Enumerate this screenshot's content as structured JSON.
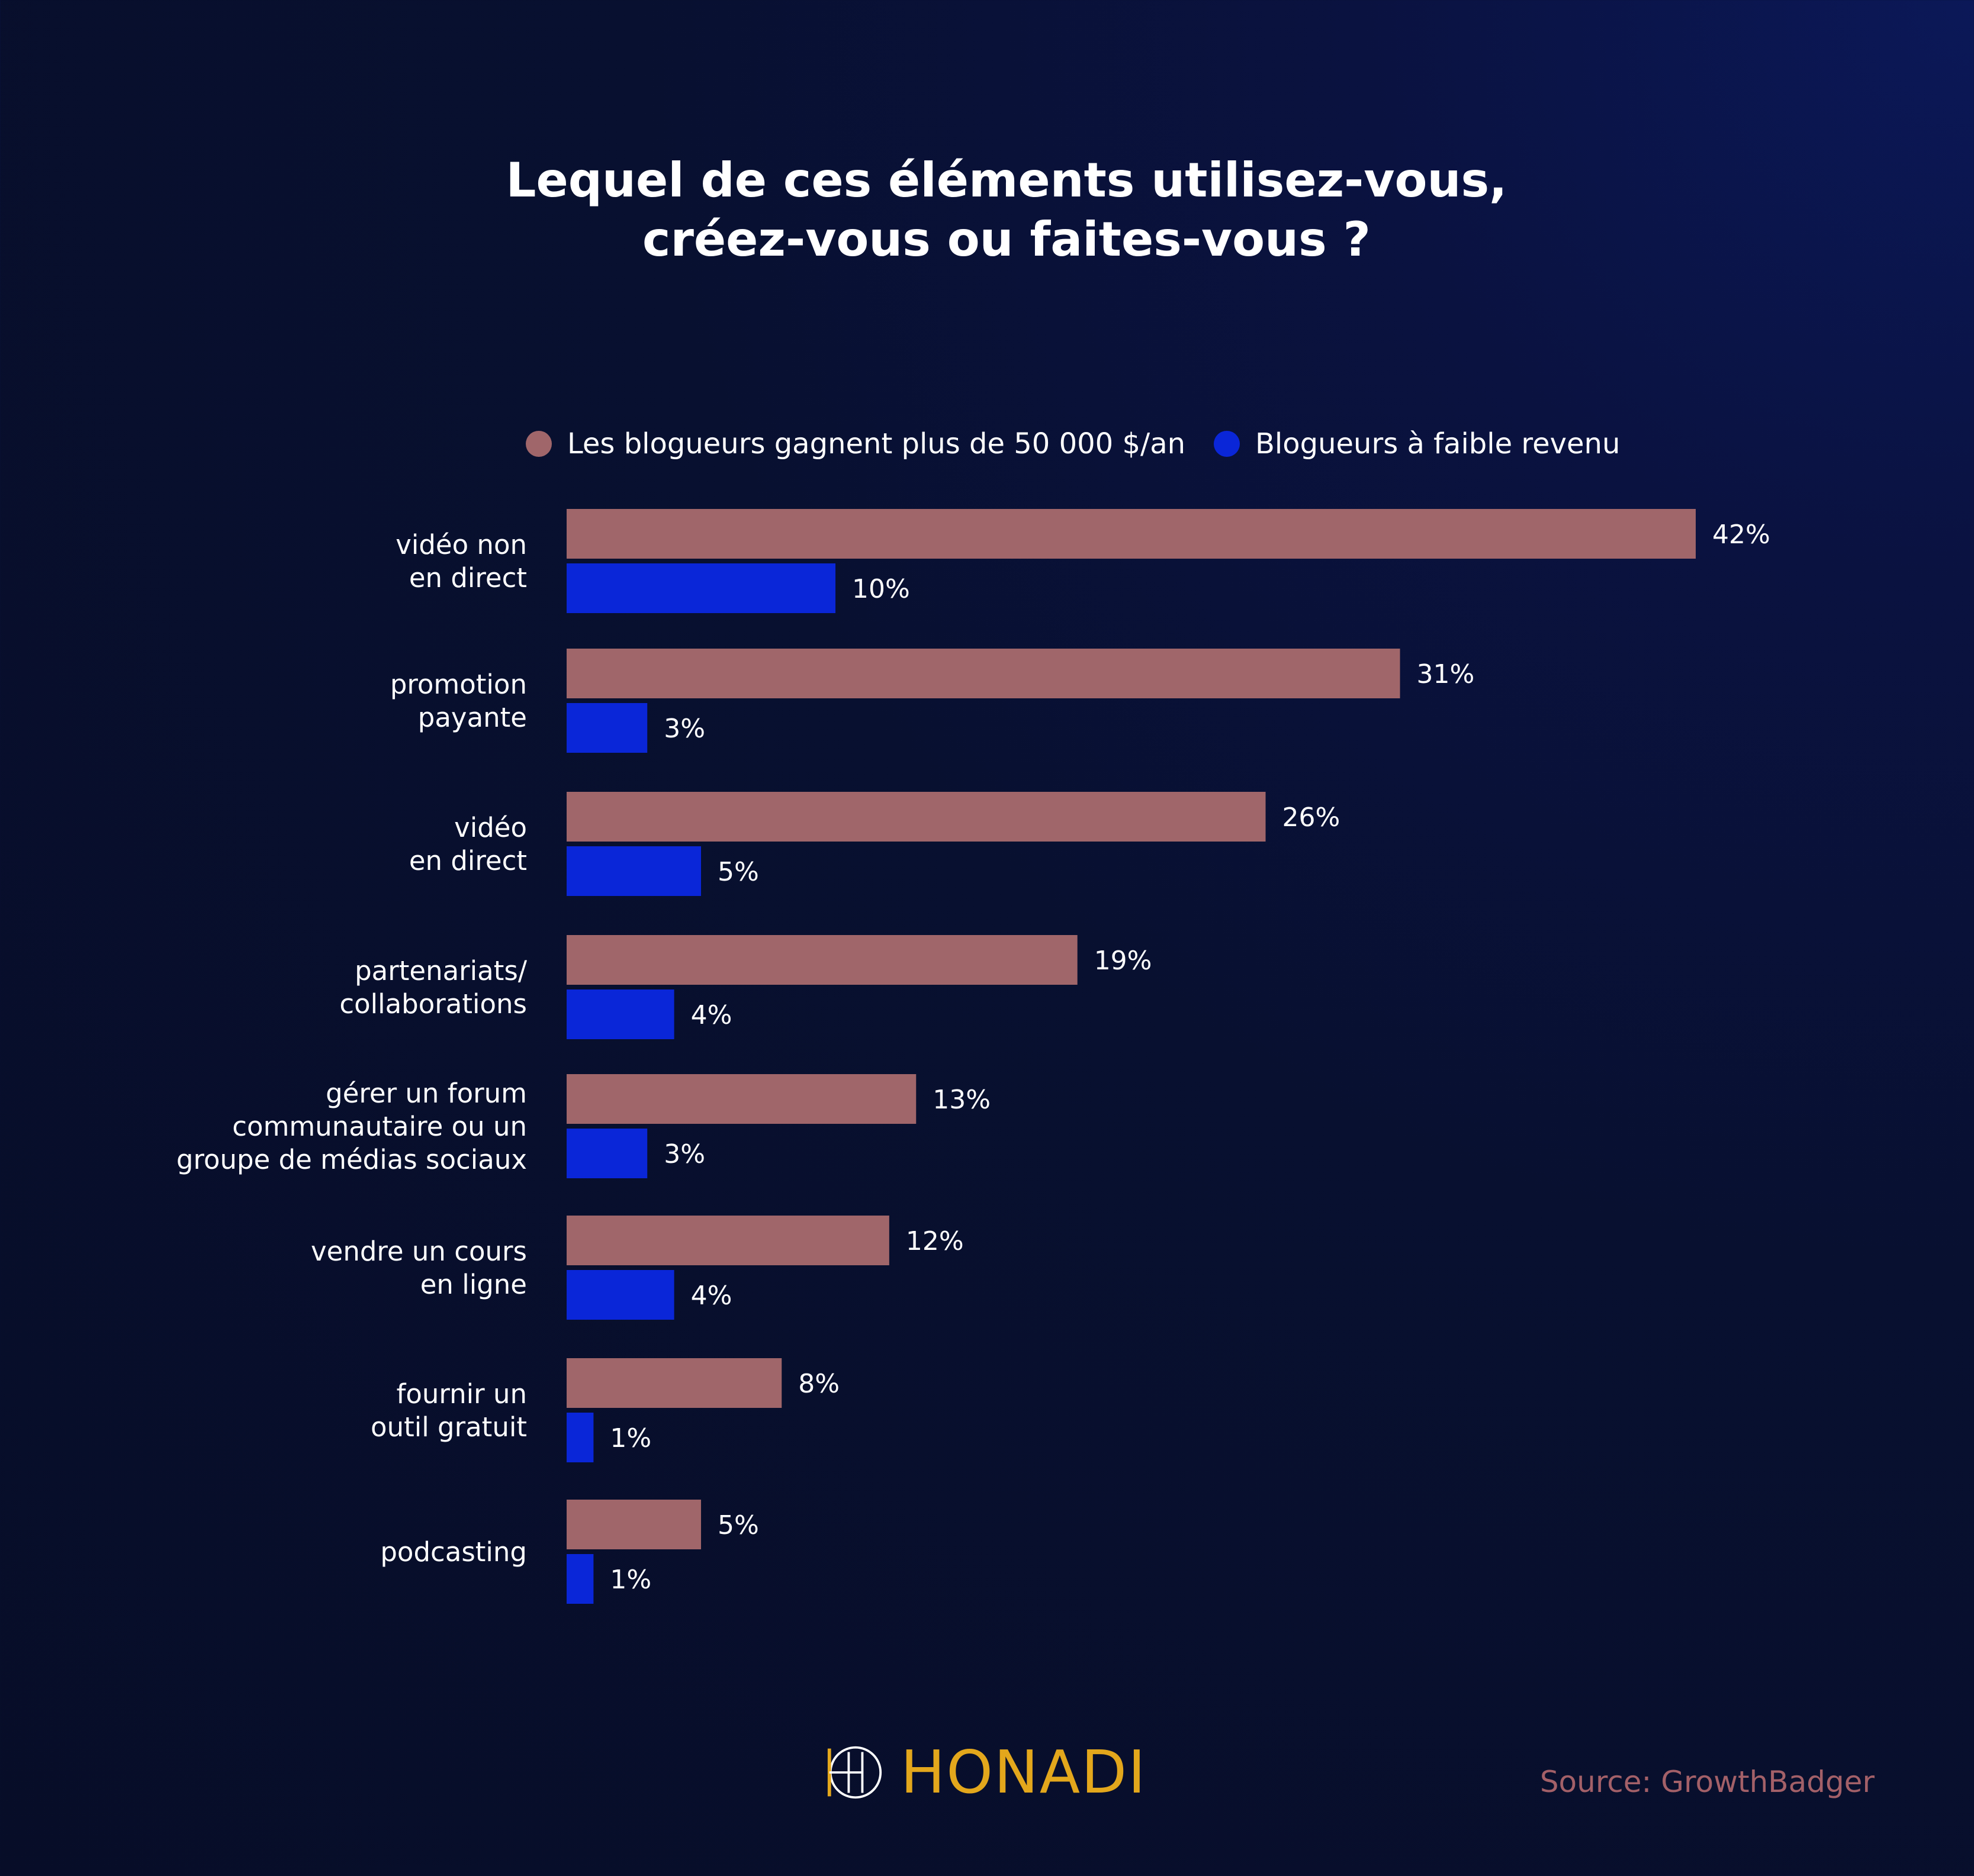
{
  "colors": {
    "series_high": "#a0666a",
    "series_low": "#0a26d8",
    "brand": "#e3a71c",
    "source_text": "#a36068"
  },
  "title": {
    "line1": "Lequel de ces éléments utilisez-vous,",
    "line2": "créez-vous ou faites-vous ?"
  },
  "legend": {
    "high": "Les blogueurs gagnent plus de 50 000 $/an",
    "low": "Blogueurs à faible revenu"
  },
  "chart_data": {
    "type": "bar",
    "orientation": "horizontal",
    "title": "Lequel de ces éléments utilisez-vous, créez-vous ou faites-vous ?",
    "xlabel": "",
    "ylabel": "",
    "xlim": [
      0,
      42
    ],
    "grid": false,
    "legend_position": "top",
    "categories": [
      [
        "vidéo non",
        "en direct"
      ],
      [
        "promotion",
        "payante"
      ],
      [
        "vidéo",
        "en direct"
      ],
      [
        "partenariats/",
        "collaborations"
      ],
      [
        "gérer un forum",
        "communautaire ou un",
        "groupe de médias sociaux"
      ],
      [
        "vendre un cours",
        "en ligne"
      ],
      [
        "fournir un",
        "outil gratuit"
      ],
      [
        "podcasting"
      ]
    ],
    "series": [
      {
        "name": "Les blogueurs gagnent plus de 50 000 $/an",
        "values": [
          42,
          31,
          26,
          19,
          13,
          12,
          8,
          5
        ],
        "labels": [
          "42%",
          "31%",
          "26%",
          "19%",
          "13%",
          "12%",
          "8%",
          "5%"
        ]
      },
      {
        "name": "Blogueurs à faible revenu",
        "values": [
          10,
          3,
          5,
          4,
          3,
          4,
          1,
          1
        ],
        "labels": [
          "10%",
          "3%",
          "5%",
          "4%",
          "3%",
          "4%",
          "1%",
          "1%"
        ]
      }
    ]
  },
  "brand": {
    "name": "HONADI",
    "logo_icon": "honadi-logo-icon"
  },
  "source": "Source: GrowthBadger"
}
